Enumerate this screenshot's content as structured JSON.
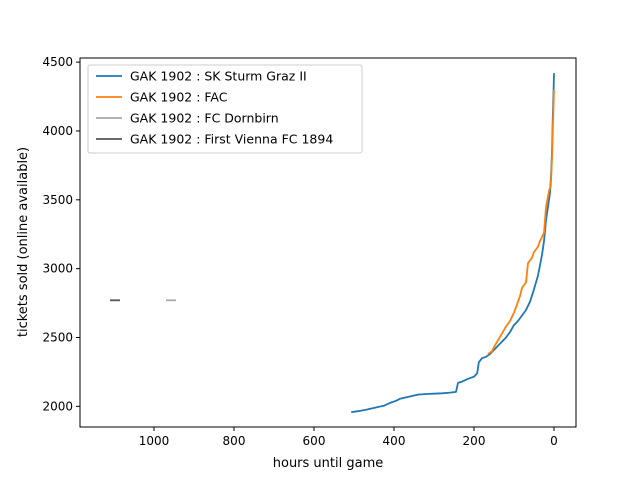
{
  "chart_data": {
    "type": "line",
    "title": "",
    "xlabel": "hours until game",
    "ylabel": "tickets sold (online available)",
    "x_inverted": true,
    "xlim": [
      1185,
      -55
    ],
    "ylim": [
      1850,
      4530
    ],
    "xticks": [
      {
        "value": 1000,
        "label": "1000"
      },
      {
        "value": 800,
        "label": "800"
      },
      {
        "value": 600,
        "label": "600"
      },
      {
        "value": 400,
        "label": "400"
      },
      {
        "value": 200,
        "label": "200"
      },
      {
        "value": 0,
        "label": "0"
      }
    ],
    "yticks": [
      {
        "value": 2000,
        "label": "2000"
      },
      {
        "value": 2500,
        "label": "2500"
      },
      {
        "value": 3000,
        "label": "3000"
      },
      {
        "value": 3500,
        "label": "3500"
      },
      {
        "value": 4000,
        "label": "4000"
      },
      {
        "value": 4500,
        "label": "4500"
      }
    ],
    "grid": false,
    "legend_position": "upper-left",
    "series": [
      {
        "name": "GAK 1902 : SK Sturm Graz II",
        "color": "#1f77b4",
        "x": [
          507,
          490,
          470,
          455,
          440,
          425,
          410,
          395,
          385,
          370,
          355,
          340,
          320,
          300,
          280,
          260,
          245,
          240,
          230,
          215,
          200,
          192,
          188,
          180,
          170,
          160,
          150,
          140,
          130,
          120,
          110,
          100,
          90,
          80,
          70,
          60,
          50,
          40,
          30,
          25,
          20,
          15,
          10,
          7,
          5,
          3,
          1,
          0
        ],
        "y": [
          1958,
          1965,
          1975,
          1985,
          1995,
          2005,
          2025,
          2040,
          2055,
          2065,
          2075,
          2085,
          2090,
          2092,
          2095,
          2100,
          2105,
          2170,
          2180,
          2200,
          2215,
          2240,
          2320,
          2350,
          2360,
          2380,
          2410,
          2440,
          2470,
          2500,
          2540,
          2590,
          2620,
          2660,
          2700,
          2760,
          2850,
          2950,
          3100,
          3200,
          3350,
          3450,
          3550,
          3700,
          3850,
          4100,
          4300,
          4420
        ]
      },
      {
        "name": "GAK 1902 : FAC",
        "color": "#ff7f0e",
        "x": [
          165,
          155,
          150,
          140,
          130,
          120,
          110,
          100,
          95,
          85,
          80,
          70,
          65,
          55,
          50,
          40,
          35,
          25,
          20,
          12,
          8,
          5,
          2,
          0
        ],
        "y": [
          2380,
          2400,
          2430,
          2480,
          2530,
          2580,
          2620,
          2680,
          2720,
          2800,
          2860,
          2900,
          3040,
          3080,
          3120,
          3160,
          3200,
          3260,
          3450,
          3570,
          3600,
          3800,
          4100,
          4300
        ]
      },
      {
        "name": "GAK 1902 : FC Dornbirn",
        "color": "#aaaaaa",
        "x": [
          970,
          945
        ],
        "y": [
          2770,
          2770
        ]
      },
      {
        "name": "GAK 1902 : First Vienna FC 1894",
        "color": "#555555",
        "x": [
          1110,
          1085
        ],
        "y": [
          2770,
          2770
        ]
      }
    ]
  }
}
